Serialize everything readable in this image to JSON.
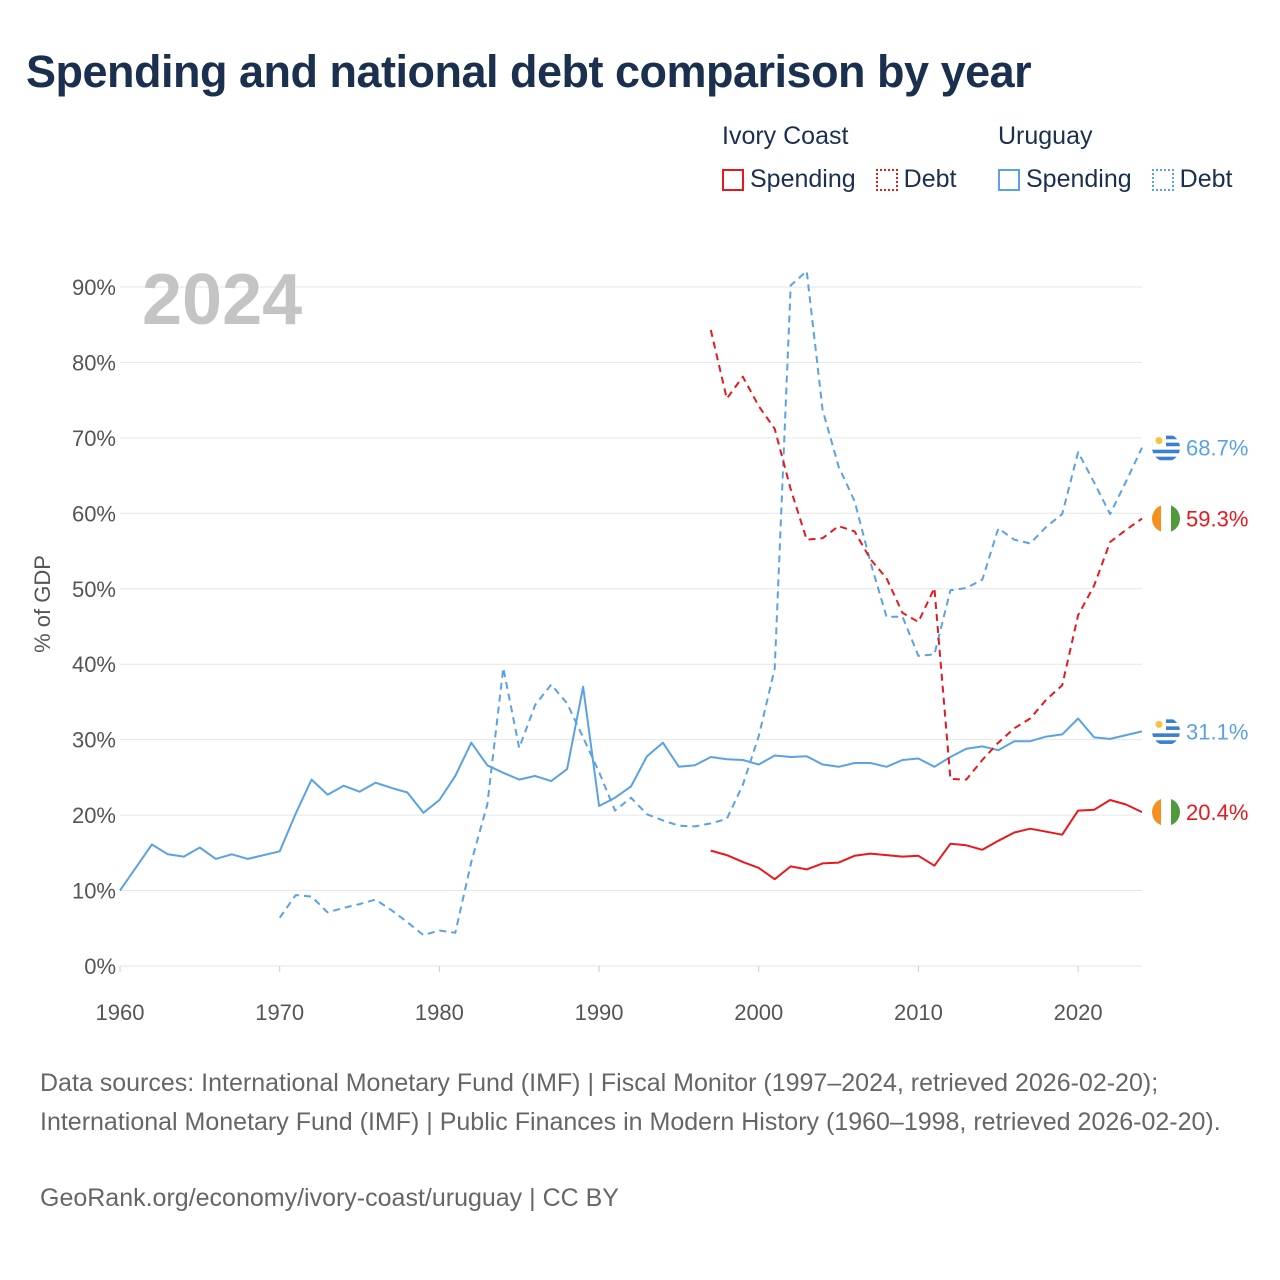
{
  "title": "Spending and national debt comparison by year",
  "year_watermark": "2024",
  "colors": {
    "ivory": "#e8191d",
    "uruguay": "#5aa2e4",
    "title": "#1b2f4f",
    "grid": "#e6e6e6",
    "watermark": "#c4c4c4"
  },
  "legend": {
    "groups": [
      {
        "name": "Ivory Coast",
        "spending_label": "Spending",
        "debt_label": "Debt"
      },
      {
        "name": "Uruguay",
        "spending_label": "Spending",
        "debt_label": "Debt"
      }
    ]
  },
  "end_labels": {
    "uruguay_debt": "68.7%",
    "ivory_debt": "59.3%",
    "uruguay_spending": "31.1%",
    "ivory_spending": "20.4%"
  },
  "flags": {
    "uruguay": "uruguay-flag-icon",
    "ivory": "ivory-coast-flag-icon"
  },
  "sources": "Data sources: International Monetary Fund (IMF) | Fiscal Monitor (1997–2024, retrieved 2026-02-20); International Monetary Fund (IMF) | Public Finances in Modern History (1960–1998, retrieved 2026-02-20).",
  "credit": "GeoRank.org/economy/ivory-coast/uruguay | CC BY",
  "chart_data": {
    "type": "line",
    "title": "Spending and national debt comparison by year",
    "xlabel": "",
    "ylabel": "% of GDP",
    "xlim": [
      1960,
      2024
    ],
    "ylim": [
      0,
      92
    ],
    "x_ticks": [
      1960,
      1970,
      1980,
      1990,
      2000,
      2010,
      2020
    ],
    "y_ticks": [
      0,
      10,
      20,
      30,
      40,
      50,
      60,
      70,
      80,
      90
    ],
    "y_tick_labels": [
      "0%",
      "10%",
      "20%",
      "30%",
      "40%",
      "50%",
      "60%",
      "70%",
      "80%",
      "90%"
    ],
    "grid": true,
    "legend": "top-right",
    "series": [
      {
        "name": "Uruguay Spending",
        "country": "Uruguay",
        "measure": "Spending",
        "style": "solid",
        "color": "#5aa2e4",
        "points": [
          [
            1960,
            10
          ],
          [
            1962,
            16.1
          ],
          [
            1963,
            14.8
          ],
          [
            1964,
            14.5
          ],
          [
            1965,
            15.7
          ],
          [
            1966,
            14.2
          ],
          [
            1967,
            14.8
          ],
          [
            1968,
            14.2
          ],
          [
            1970,
            15.2
          ],
          [
            1971,
            20.2
          ],
          [
            1972,
            24.7
          ],
          [
            1973,
            22.7
          ],
          [
            1974,
            23.9
          ],
          [
            1975,
            23.1
          ],
          [
            1976,
            24.3
          ],
          [
            1977,
            23.6
          ],
          [
            1978,
            23
          ],
          [
            1979,
            20.3
          ],
          [
            1980,
            22
          ],
          [
            1981,
            25.2
          ],
          [
            1982,
            29.6
          ],
          [
            1983,
            26.6
          ],
          [
            1984,
            25.6
          ],
          [
            1985,
            24.7
          ],
          [
            1986,
            25.2
          ],
          [
            1987,
            24.5
          ],
          [
            1988,
            26.1
          ],
          [
            1989,
            37
          ],
          [
            1990,
            21.2
          ],
          [
            1991,
            22.3
          ],
          [
            1992,
            23.8
          ],
          [
            1993,
            27.8
          ],
          [
            1994,
            29.6
          ],
          [
            1995,
            26.4
          ],
          [
            1996,
            26.6
          ],
          [
            1997,
            27.7
          ],
          [
            1998,
            27.4
          ],
          [
            1999,
            27.3
          ],
          [
            2000,
            26.7
          ],
          [
            2001,
            27.9
          ],
          [
            2002,
            27.7
          ],
          [
            2003,
            27.8
          ],
          [
            2004,
            26.7
          ],
          [
            2005,
            26.4
          ],
          [
            2006,
            26.9
          ],
          [
            2007,
            26.9
          ],
          [
            2008,
            26.4
          ],
          [
            2009,
            27.3
          ],
          [
            2010,
            27.5
          ],
          [
            2011,
            26.4
          ],
          [
            2012,
            27.7
          ],
          [
            2013,
            28.8
          ],
          [
            2014,
            29.1
          ],
          [
            2015,
            28.6
          ],
          [
            2016,
            29.8
          ],
          [
            2017,
            29.8
          ],
          [
            2018,
            30.4
          ],
          [
            2019,
            30.7
          ],
          [
            2020,
            32.8
          ],
          [
            2021,
            30.3
          ],
          [
            2022,
            30.1
          ],
          [
            2023,
            30.6
          ],
          [
            2024,
            31.1
          ]
        ]
      },
      {
        "name": "Uruguay Debt",
        "country": "Uruguay",
        "measure": "Debt",
        "style": "dashed",
        "color": "#5aa2e4",
        "points": [
          [
            1970,
            6.4
          ],
          [
            1971,
            9.4
          ],
          [
            1972,
            9.2
          ],
          [
            1973,
            7.1
          ],
          [
            1974,
            7.7
          ],
          [
            1975,
            8.2
          ],
          [
            1976,
            8.8
          ],
          [
            1977,
            7.4
          ],
          [
            1978,
            5.8
          ],
          [
            1979,
            4.1
          ],
          [
            1980,
            4.7
          ],
          [
            1981,
            4.4
          ],
          [
            1982,
            13.8
          ],
          [
            1983,
            21.4
          ],
          [
            1984,
            39.5
          ],
          [
            1985,
            28.9
          ],
          [
            1986,
            34.6
          ],
          [
            1987,
            37.3
          ],
          [
            1988,
            34.8
          ],
          [
            1989,
            30.3
          ],
          [
            1990,
            25.7
          ],
          [
            1991,
            20.6
          ],
          [
            1992,
            22.3
          ],
          [
            1993,
            20.1
          ],
          [
            1994,
            19.3
          ],
          [
            1995,
            18.6
          ],
          [
            1996,
            18.5
          ],
          [
            1997,
            18.9
          ],
          [
            1998,
            19.5
          ],
          [
            1999,
            24
          ],
          [
            2000,
            30.5
          ],
          [
            2001,
            39.4
          ],
          [
            2002,
            90.2
          ],
          [
            2003,
            92.1
          ],
          [
            2004,
            73.7
          ],
          [
            2005,
            66.2
          ],
          [
            2006,
            61.6
          ],
          [
            2007,
            53.5
          ],
          [
            2008,
            46.3
          ],
          [
            2009,
            46.3
          ],
          [
            2010,
            41.1
          ],
          [
            2011,
            41.3
          ],
          [
            2012,
            49.8
          ],
          [
            2013,
            50.1
          ],
          [
            2014,
            51.2
          ],
          [
            2015,
            58
          ],
          [
            2016,
            56.5
          ],
          [
            2017,
            56
          ],
          [
            2018,
            58.2
          ],
          [
            2019,
            59.9
          ],
          [
            2020,
            68.1
          ],
          [
            2021,
            64.1
          ],
          [
            2022,
            59.9
          ],
          [
            2023,
            64.2
          ],
          [
            2024,
            68.7
          ]
        ]
      },
      {
        "name": "Ivory Coast Spending",
        "country": "Ivory Coast",
        "measure": "Spending",
        "style": "solid",
        "color": "#e8191d",
        "points": [
          [
            1997,
            15.3
          ],
          [
            1998,
            14.7
          ],
          [
            1999,
            13.8
          ],
          [
            2000,
            13
          ],
          [
            2001,
            11.5
          ],
          [
            2002,
            13.2
          ],
          [
            2003,
            12.8
          ],
          [
            2004,
            13.6
          ],
          [
            2005,
            13.7
          ],
          [
            2006,
            14.6
          ],
          [
            2007,
            14.9
          ],
          [
            2008,
            14.7
          ],
          [
            2009,
            14.5
          ],
          [
            2010,
            14.6
          ],
          [
            2011,
            13.3
          ],
          [
            2012,
            16.2
          ],
          [
            2013,
            16
          ],
          [
            2014,
            15.4
          ],
          [
            2015,
            16.6
          ],
          [
            2016,
            17.7
          ],
          [
            2017,
            18.2
          ],
          [
            2018,
            17.8
          ],
          [
            2019,
            17.4
          ],
          [
            2020,
            20.6
          ],
          [
            2021,
            20.7
          ],
          [
            2022,
            22
          ],
          [
            2023,
            21.4
          ],
          [
            2024,
            20.4
          ]
        ]
      },
      {
        "name": "Ivory Coast Debt",
        "country": "Ivory Coast",
        "measure": "Debt",
        "style": "dashed",
        "color": "#e8191d",
        "points": [
          [
            1997,
            84.3
          ],
          [
            1998,
            75.2
          ],
          [
            1999,
            78.1
          ],
          [
            2000,
            74.2
          ],
          [
            2001,
            71.2
          ],
          [
            2002,
            63.2
          ],
          [
            2003,
            56.5
          ],
          [
            2004,
            56.7
          ],
          [
            2005,
            58.3
          ],
          [
            2006,
            57.6
          ],
          [
            2007,
            53.9
          ],
          [
            2008,
            51.4
          ],
          [
            2009,
            46.8
          ],
          [
            2010,
            45.6
          ],
          [
            2011,
            50.1
          ],
          [
            2012,
            24.8
          ],
          [
            2013,
            24.7
          ],
          [
            2014,
            27.3
          ],
          [
            2015,
            29.6
          ],
          [
            2016,
            31.5
          ],
          [
            2017,
            32.8
          ],
          [
            2018,
            35.3
          ],
          [
            2019,
            37.2
          ],
          [
            2020,
            46.5
          ],
          [
            2021,
            50.4
          ],
          [
            2022,
            56.2
          ],
          [
            2023,
            57.8
          ],
          [
            2024,
            59.3
          ]
        ]
      }
    ]
  }
}
